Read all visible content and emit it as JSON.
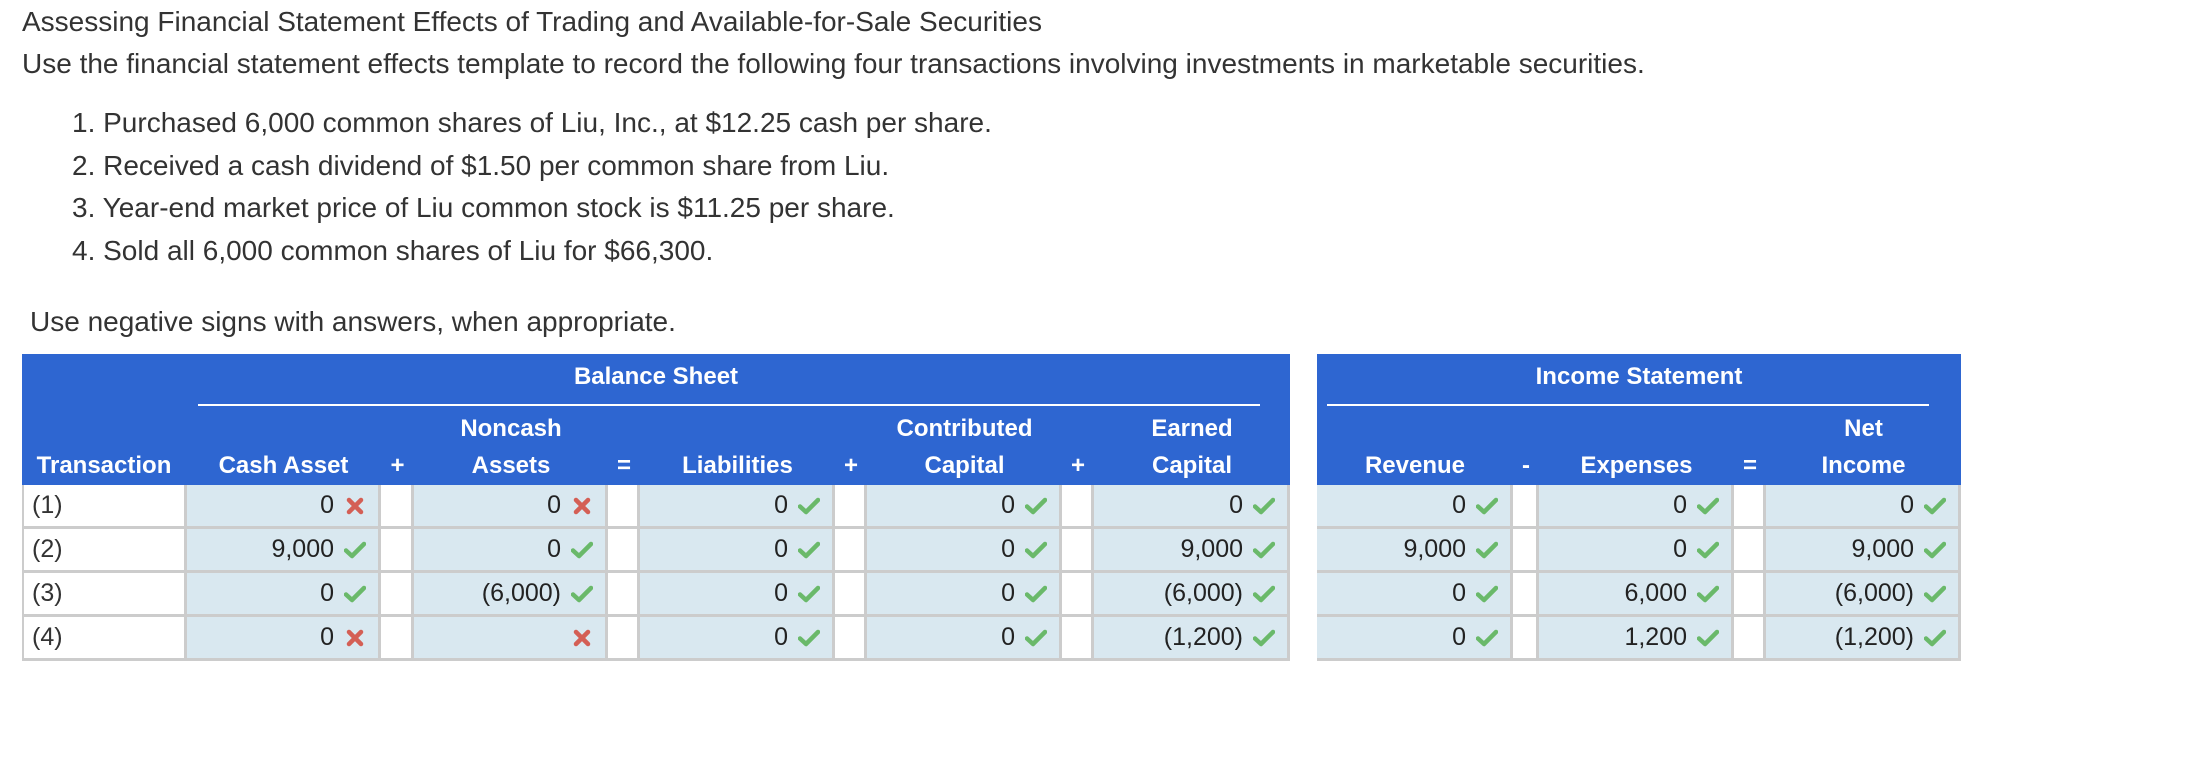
{
  "header": {
    "title": "Assessing Financial Statement Effects of Trading and Available-for-Sale Securities",
    "instructions": "Use the financial statement effects template to record the following four transactions involving investments in marketable securities."
  },
  "transactions_list": [
    "1. Purchased 6,000 common shares of Liu, Inc., at $12.25 cash per share.",
    "2. Received a cash dividend of $1.50 per common share from Liu.",
    "3. Year-end market price of Liu common stock is $11.25 per share.",
    "4. Sold all 6,000 common shares of Liu for $66,300."
  ],
  "note": "Use negative signs with answers, when appropriate.",
  "colors": {
    "header_blue": "#2e66d1",
    "cell_bg": "#d9e8f0",
    "check_green": "#6ab96a",
    "cross_red": "#d45f55",
    "border": "#cccccc"
  },
  "balance_sheet": {
    "title": "Balance Sheet",
    "columns": {
      "transaction": "Transaction",
      "cash_asset": "Cash Asset",
      "op1": "+",
      "noncash_line1": "Noncash",
      "noncash_line2": "Assets",
      "op2": "=",
      "liabilities": "Liabilities",
      "op3": "+",
      "contributed_line1": "Contributed",
      "contributed_line2": "Capital",
      "op4": "+",
      "earned_line1": "Earned",
      "earned_line2": "Capital"
    },
    "rows": [
      {
        "label": "(1)",
        "cash": {
          "value": "0",
          "status": "wrong"
        },
        "noncash": {
          "value": "0",
          "status": "wrong"
        },
        "liabilities": {
          "value": "0",
          "status": "correct"
        },
        "contributed": {
          "value": "0",
          "status": "correct"
        },
        "earned": {
          "value": "0",
          "status": "correct"
        }
      },
      {
        "label": "(2)",
        "cash": {
          "value": "9,000",
          "status": "correct"
        },
        "noncash": {
          "value": "0",
          "status": "correct"
        },
        "liabilities": {
          "value": "0",
          "status": "correct"
        },
        "contributed": {
          "value": "0",
          "status": "correct"
        },
        "earned": {
          "value": "9,000",
          "status": "correct"
        }
      },
      {
        "label": "(3)",
        "cash": {
          "value": "0",
          "status": "correct"
        },
        "noncash": {
          "value": "(6,000)",
          "status": "correct"
        },
        "liabilities": {
          "value": "0",
          "status": "correct"
        },
        "contributed": {
          "value": "0",
          "status": "correct"
        },
        "earned": {
          "value": "(6,000)",
          "status": "correct"
        }
      },
      {
        "label": "(4)",
        "cash": {
          "value": "0",
          "status": "wrong"
        },
        "noncash": {
          "value": "",
          "status": "wrong"
        },
        "liabilities": {
          "value": "0",
          "status": "correct"
        },
        "contributed": {
          "value": "0",
          "status": "correct"
        },
        "earned": {
          "value": "(1,200)",
          "status": "correct"
        }
      }
    ]
  },
  "income_statement": {
    "title": "Income Statement",
    "columns": {
      "revenue": "Revenue",
      "op1": "-",
      "expenses": "Expenses",
      "op2": "=",
      "net_line1": "Net",
      "net_line2": "Income"
    },
    "rows": [
      {
        "revenue": {
          "value": "0",
          "status": "correct"
        },
        "expenses": {
          "value": "0",
          "status": "correct"
        },
        "net": {
          "value": "0",
          "status": "correct"
        }
      },
      {
        "revenue": {
          "value": "9,000",
          "status": "correct"
        },
        "expenses": {
          "value": "0",
          "status": "correct"
        },
        "net": {
          "value": "9,000",
          "status": "correct"
        }
      },
      {
        "revenue": {
          "value": "0",
          "status": "correct"
        },
        "expenses": {
          "value": "6,000",
          "status": "correct"
        },
        "net": {
          "value": "(6,000)",
          "status": "correct"
        }
      },
      {
        "revenue": {
          "value": "0",
          "status": "correct"
        },
        "expenses": {
          "value": "1,200",
          "status": "correct"
        },
        "net": {
          "value": "(1,200)",
          "status": "correct"
        }
      }
    ]
  }
}
